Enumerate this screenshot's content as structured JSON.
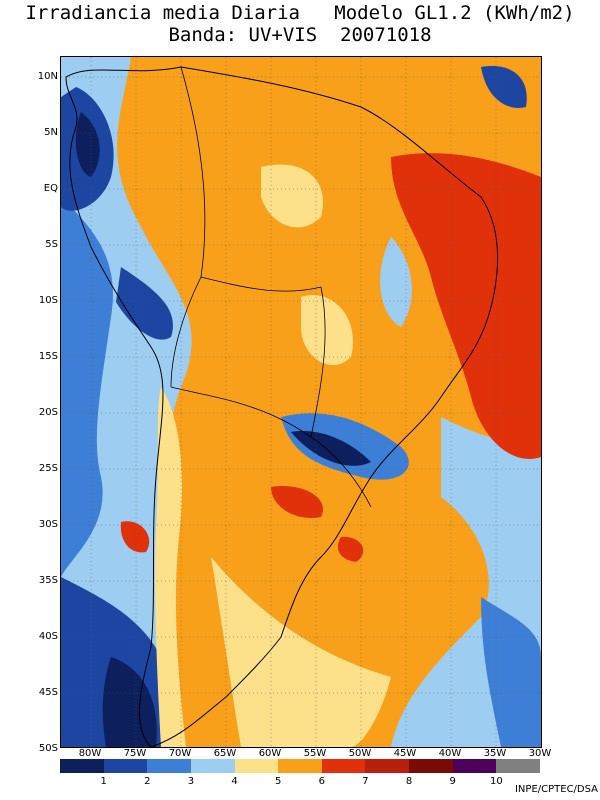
{
  "header": {
    "title_line1": "Irradiancia media Diaria   Modelo GL1.2 (KWh/m2)",
    "title_line2": "Banda: UV+VIS  20071018"
  },
  "map": {
    "lat_labels": [
      "10N",
      "5N",
      "EQ",
      "5S",
      "10S",
      "15S",
      "20S",
      "25S",
      "30S",
      "35S",
      "40S",
      "45S",
      "50S"
    ],
    "lon_labels": [
      "80W",
      "75W",
      "70W",
      "65W",
      "60W",
      "55W",
      "50W",
      "45W",
      "40W",
      "35W",
      "30W"
    ]
  },
  "legend": {
    "colors": [
      "#0d1f5c",
      "#1d46a3",
      "#3d7fd6",
      "#9ecdf2",
      "#fde08a",
      "#f9a01b",
      "#e0310b",
      "#b7200a",
      "#7a0a06",
      "#4c005a",
      "#808080"
    ],
    "labels": [
      "1",
      "2",
      "3",
      "4",
      "5",
      "6",
      "7",
      "8",
      "9",
      "10"
    ]
  },
  "footer": {
    "credit": "INPE/CPTEC/DSA"
  }
}
